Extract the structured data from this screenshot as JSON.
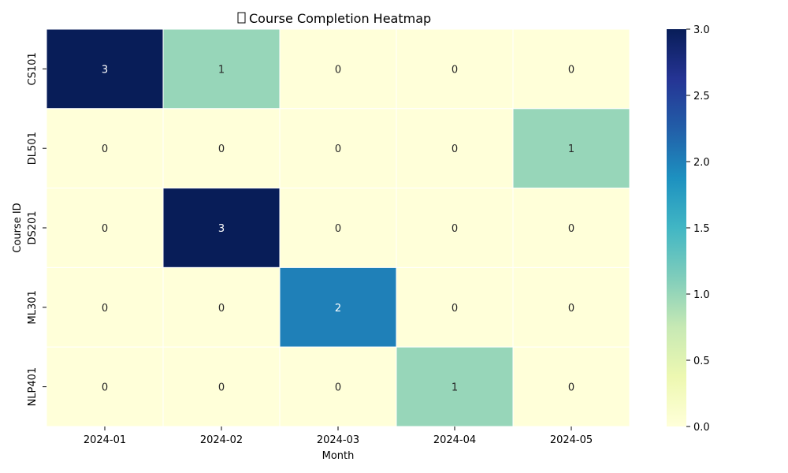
{
  "chart_data": {
    "type": "heatmap",
    "title": "Course Completion Heatmap",
    "title_icon": "chart-icon",
    "xlabel": "Month",
    "ylabel": "Course ID",
    "columns": [
      "2024-01",
      "2024-02",
      "2024-03",
      "2024-04",
      "2024-05"
    ],
    "rows": [
      "CS101",
      "DL501",
      "DS201",
      "ML301",
      "NLP401"
    ],
    "values": [
      [
        3,
        1,
        0,
        0,
        0
      ],
      [
        0,
        0,
        0,
        0,
        1
      ],
      [
        0,
        3,
        0,
        0,
        0
      ],
      [
        0,
        0,
        2,
        0,
        0
      ],
      [
        0,
        0,
        0,
        1,
        0
      ]
    ],
    "colormap": "YlGnBu",
    "vmin": 0,
    "vmax": 3,
    "colorbar_ticks": [
      "0.0",
      "0.5",
      "1.0",
      "1.5",
      "2.0",
      "2.5",
      "3.0"
    ],
    "cell_border_color": "#ffffff"
  }
}
